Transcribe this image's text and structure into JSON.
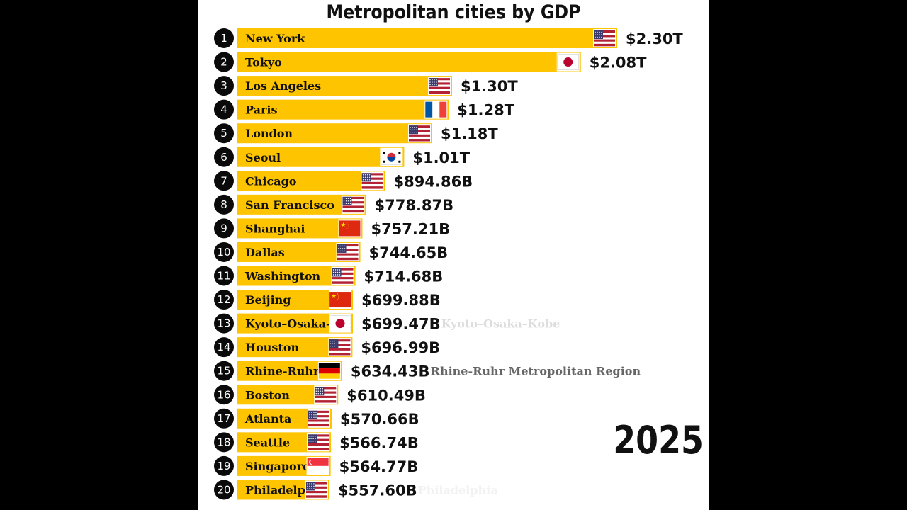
{
  "chart_data": {
    "type": "bar",
    "orientation": "horizontal",
    "title": "Metropolitan cities by GDP",
    "year": "2025",
    "bar_color": "#FFC400",
    "xlim": [
      0,
      2.3
    ],
    "unit": "trillion USD",
    "categories": [
      "New York",
      "Tokyo",
      "Los Angeles",
      "Paris",
      "London",
      "Seoul",
      "Chicago",
      "San Francisco",
      "Shanghai",
      "Dallas",
      "Washington",
      "Beijing",
      "Kyoto–Osaka-",
      "Houston",
      "Rhine-Ruhr",
      "Boston",
      "Atlanta",
      "Seattle",
      "Singapore",
      "Philadelph"
    ],
    "values": [
      2.3,
      2.08,
      1.3,
      1.28,
      1.18,
      1.01,
      0.89486,
      0.77887,
      0.75721,
      0.74465,
      0.71468,
      0.69988,
      0.69947,
      0.69699,
      0.63443,
      0.61049,
      0.57066,
      0.56674,
      0.56477,
      0.5576
    ],
    "value_labels": [
      "$2.30T",
      "$2.08T",
      "$1.30T",
      "$1.28T",
      "$1.18T",
      "$1.01T",
      "$894.86B",
      "$778.87B",
      "$757.21B",
      "$744.65B",
      "$714.68B",
      "$699.88B",
      "$699.47B",
      "$696.99B",
      "$634.43B",
      "$610.49B",
      "$570.66B",
      "$566.74B",
      "$564.77B",
      "$557.60B"
    ],
    "ranks": [
      "1",
      "2",
      "3",
      "4",
      "5",
      "6",
      "7",
      "8",
      "9",
      "10",
      "11",
      "12",
      "13",
      "14",
      "15",
      "16",
      "17",
      "18",
      "19",
      "20"
    ],
    "flags": [
      "us-flag-icon",
      "japan-flag-icon",
      "us-flag-icon",
      "france-flag-icon",
      "us-flag-icon",
      "south-korea-flag-icon",
      "us-flag-icon",
      "us-flag-icon",
      "china-flag-icon",
      "us-flag-icon",
      "us-flag-icon",
      "china-flag-icon",
      "japan-flag-icon",
      "us-flag-icon",
      "germany-flag-icon",
      "us-flag-icon",
      "us-flag-icon",
      "us-flag-icon",
      "singapore-flag-icon",
      "us-flag-icon"
    ],
    "notes": [
      "",
      "",
      "",
      "",
      "",
      "",
      "",
      "",
      "",
      "",
      "",
      "",
      "Kyoto–Osaka–Kobe",
      "",
      "Rhine-Ruhr Metropolitan Region",
      "",
      "",
      "",
      "",
      "Philadelphia"
    ],
    "note_colors": [
      "",
      "",
      "",
      "",
      "",
      "",
      "",
      "",
      "",
      "",
      "",
      "",
      "#DDDDDD",
      "",
      "#666666",
      "",
      "",
      "",
      "",
      "#F2F2F2"
    ]
  }
}
